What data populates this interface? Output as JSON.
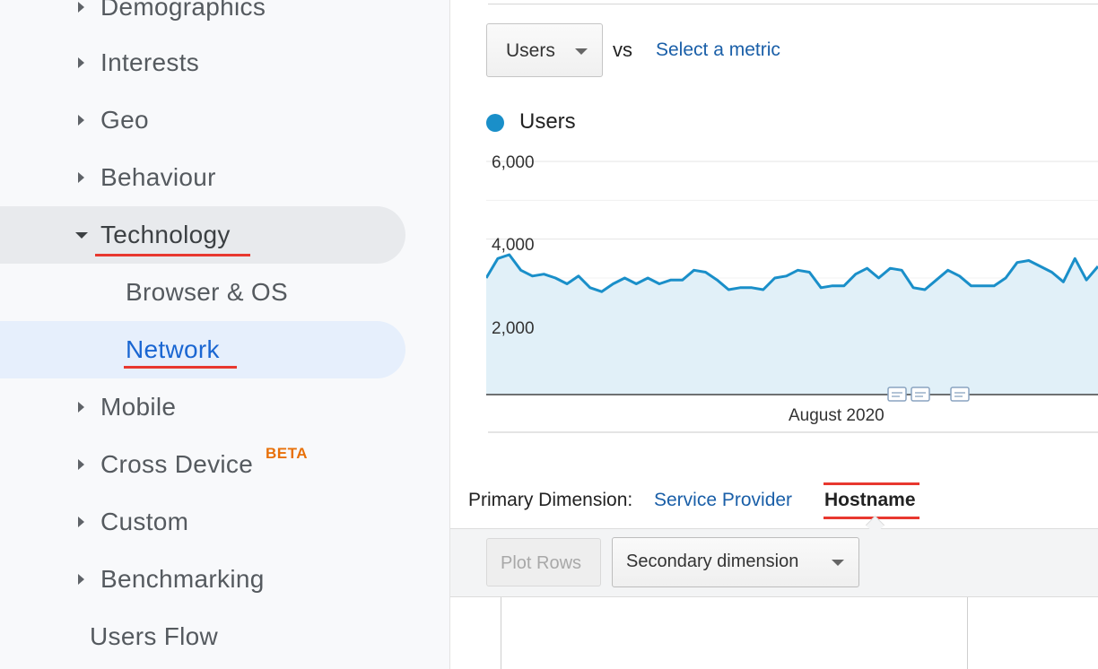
{
  "sidebar": {
    "items": [
      {
        "label": "Demographics"
      },
      {
        "label": "Interests"
      },
      {
        "label": "Geo"
      },
      {
        "label": "Behaviour"
      },
      {
        "label": "Technology"
      },
      {
        "label": "Browser & OS"
      },
      {
        "label": "Network"
      },
      {
        "label": "Mobile"
      },
      {
        "label": "Cross Device",
        "badge": "BETA"
      },
      {
        "label": "Custom"
      },
      {
        "label": "Benchmarking"
      },
      {
        "label": "Users Flow"
      }
    ]
  },
  "chart_controls": {
    "metric": "Users",
    "vs_label": "vs",
    "select_metric": "Select a metric"
  },
  "chart_data": {
    "type": "area",
    "series": [
      {
        "name": "Users",
        "color": "#1a8fc9",
        "values": [
          3000,
          3500,
          3600,
          3200,
          3050,
          3100,
          3000,
          2850,
          3050,
          2750,
          2650,
          2850,
          3000,
          2850,
          3000,
          2850,
          2950,
          2950,
          3200,
          3150,
          2950,
          2700,
          2750,
          2750,
          2700,
          3000,
          3050,
          3200,
          3150,
          2750,
          2800,
          2800,
          3100,
          3250,
          3000,
          3250,
          3200,
          2750,
          2700,
          2950,
          3200,
          3050,
          2800,
          2800,
          2800,
          3000,
          3400,
          3450,
          3300,
          3150,
          2900,
          3500,
          2950,
          3300
        ]
      }
    ],
    "yticks": [
      "6,000",
      "4,000",
      "2,000"
    ],
    "ylim": [
      0,
      6000
    ],
    "x_label_text": "August 2020",
    "grid": true
  },
  "dimension": {
    "label": "Primary Dimension:",
    "options": [
      "Service Provider",
      "Hostname"
    ],
    "active": "Hostname"
  },
  "toolbar": {
    "plot_rows": "Plot Rows",
    "secondary_dimension": "Secondary dimension"
  },
  "colors": {
    "accent_underline": "#e8382f",
    "link": "#1a5fa8",
    "active_nav": "#1a66d2",
    "beta": "#e8710a"
  }
}
